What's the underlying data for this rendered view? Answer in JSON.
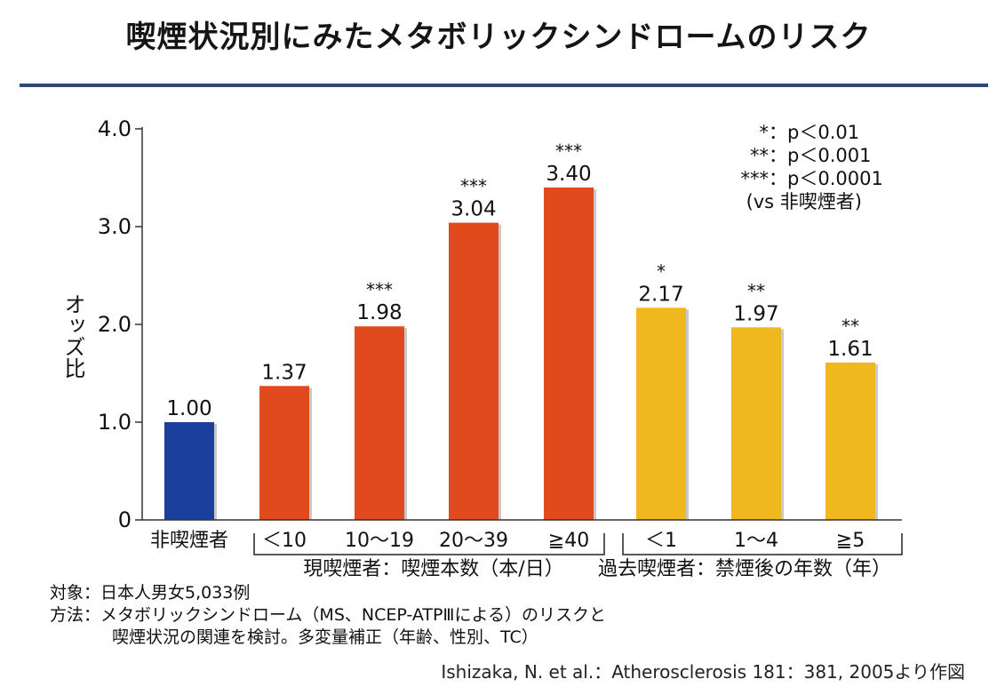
{
  "title": "喫煙状況別にみたメタボリックシンドロームのリスク",
  "legend": {
    "rows": [
      {
        "marker": "*",
        "text": "：p＜0.01"
      },
      {
        "marker": "**",
        "text": "：p＜0.001"
      },
      {
        "marker": "***",
        "text": "：p＜0.0001"
      }
    ],
    "note": "(vs 非喫煙者)"
  },
  "notes": {
    "line1": "対象：日本人男女5,033例",
    "line2": "方法：メタボリックシンドローム（MS、NCEP-ATPⅢによる）のリスクと",
    "line3": "喫煙状況の関連を検討。多変量補正（年齢、性別、TC）"
  },
  "source": "Ishizaka, N. et al.：Atherosclerosis 181：381, 2005より作図",
  "chart_data": {
    "type": "bar",
    "title": "喫煙状況別にみたメタボリックシンドロームのリスク",
    "ylabel": "オッズ比",
    "ylim": [
      0,
      4.0
    ],
    "yticks": [
      "0",
      "1.0",
      "2.0",
      "3.0",
      "4.0"
    ],
    "categories": [
      "非喫煙者",
      "＜10",
      "10〜19",
      "20〜39",
      "≧40",
      "＜1",
      "1〜4",
      "≧5"
    ],
    "values": [
      1.0,
      1.37,
      1.98,
      3.04,
      3.4,
      2.17,
      1.97,
      1.61
    ],
    "value_labels": [
      "1.00",
      "1.37",
      "1.98",
      "3.04",
      "3.40",
      "2.17",
      "1.97",
      "1.61"
    ],
    "significance": [
      "",
      "",
      "***",
      "***",
      "***",
      "*",
      "**",
      "**"
    ],
    "groups": [
      {
        "label": "",
        "categories": [
          0
        ]
      },
      {
        "label": "現喫煙者：喫煙本数（本/日）",
        "categories": [
          1,
          2,
          3,
          4
        ]
      },
      {
        "label": "過去喫煙者：禁煙後の年数（年）",
        "categories": [
          5,
          6,
          7
        ]
      }
    ],
    "colors": {
      "nonsmoker": "#1b3f9c",
      "current": "#e04a1c",
      "former": "#f0b81e"
    },
    "bar_colors": [
      "nonsmoker",
      "current",
      "current",
      "current",
      "current",
      "former",
      "former",
      "former"
    ],
    "grid": false
  }
}
